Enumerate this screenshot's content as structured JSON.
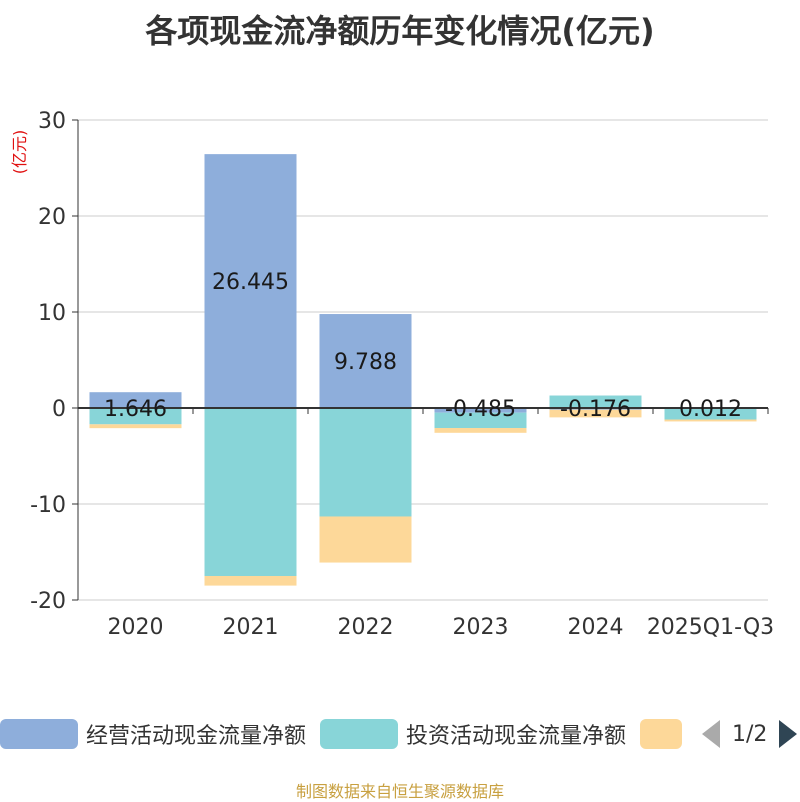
{
  "chart_data": {
    "type": "bar",
    "stacked": true,
    "title": "各项现金流净额历年变化情况(亿元)",
    "ylabel": "(亿元)",
    "ylim": [
      -20,
      30
    ],
    "yticks": [
      30,
      20,
      10,
      0,
      -10,
      -20
    ],
    "categories": [
      "2020",
      "2021",
      "2022",
      "2023",
      "2024",
      "2025Q1-Q3"
    ],
    "series": [
      {
        "name": "经营活动现金流量净额",
        "color": "#8eaedb",
        "values": [
          1.646,
          26.445,
          9.788,
          -0.485,
          -0.176,
          0.012
        ]
      },
      {
        "name": "投资活动现金流量净额",
        "color": "#88d5d8",
        "values": [
          -1.7,
          -17.5,
          -11.3,
          -1.6,
          1.3,
          -1.2
        ]
      },
      {
        "name": "",
        "color": "#fdd899",
        "values": [
          -0.4,
          -1.0,
          -4.8,
          -0.5,
          -0.8,
          -0.2
        ]
      }
    ],
    "data_labels": [
      "1.646",
      "26.445",
      "9.788",
      "-0.485",
      "-0.176",
      "0.012"
    ]
  },
  "legend": {
    "pager": "1/2"
  },
  "source": "制图数据来自恒生聚源数据库"
}
